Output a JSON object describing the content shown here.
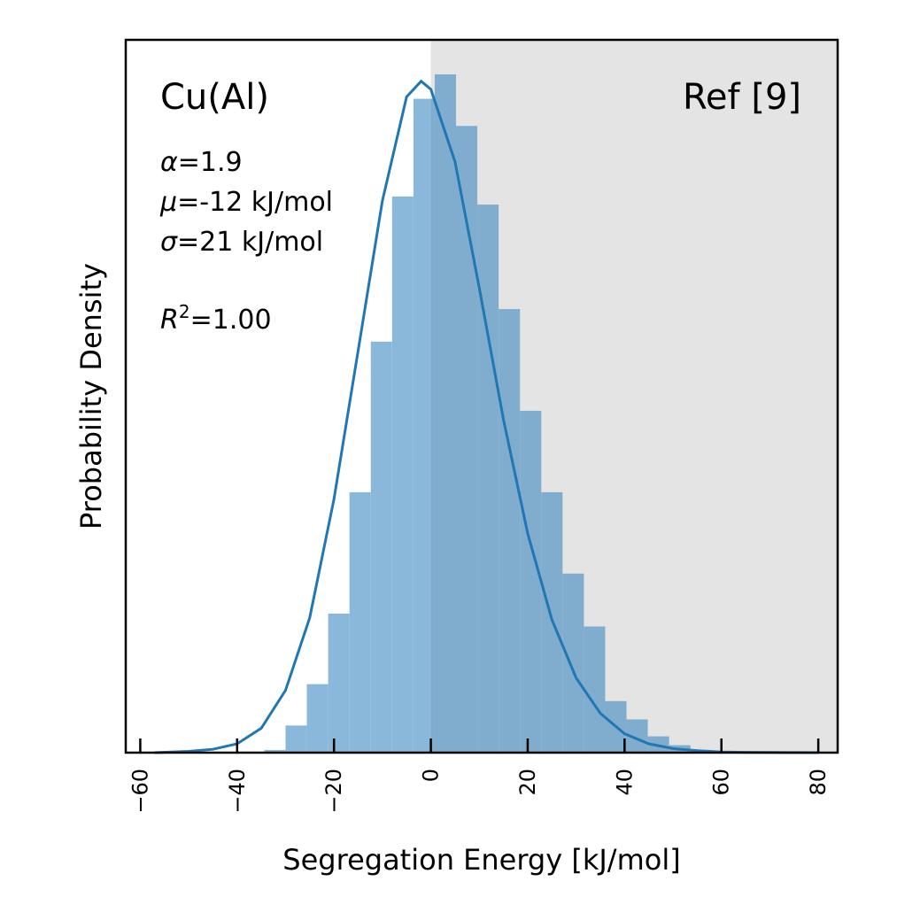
{
  "chart_data": {
    "type": "bar",
    "subtype": "histogram with fitted skew-normal curve",
    "xlabel": "Segregation Energy [kJ/mol]",
    "ylabel": "Probability Density",
    "xlim": [
      -63,
      84
    ],
    "ylim": [
      0,
      1.0
    ],
    "x_ticks": [
      -60,
      -40,
      -20,
      0,
      20,
      40,
      60,
      80
    ],
    "x_tick_labels": [
      "−60",
      "−40",
      "−20",
      "0",
      "20",
      "40",
      "60",
      "80"
    ],
    "y_tick_labels_shown": false,
    "shaded_region": {
      "from": 0,
      "to": 84,
      "color": "#e4e4e4"
    },
    "label_system": "Cu(Al)",
    "label_reference": "Ref [9]",
    "parameters": [
      {
        "symbol": "α",
        "text": "=1.9"
      },
      {
        "symbol": "μ",
        "text": "=-12 kJ/mol"
      },
      {
        "symbol": "σ",
        "text": "=21 kJ/mol"
      }
    ],
    "r_squared": {
      "symbol": "R",
      "sup": "2",
      "text": "=1.00"
    },
    "bar_color": "#8ab8da",
    "bar_color_in_shade": "#80acce",
    "curve_color": "#1f77b4",
    "bins": {
      "edges": [
        -34.4,
        -30.0,
        -25.6,
        -21.2,
        -16.8,
        -12.4,
        -8.0,
        -3.6,
        0.8,
        5.2,
        9.6,
        14.0,
        18.4,
        22.8,
        27.2,
        31.6,
        36.0,
        40.4,
        44.8,
        49.2,
        53.6,
        58.0
      ],
      "values": [
        0.004,
        0.04,
        0.101,
        0.205,
        0.384,
        0.606,
        0.82,
        0.964,
        1.0,
        0.924,
        0.808,
        0.654,
        0.504,
        0.384,
        0.264,
        0.186,
        0.076,
        0.049,
        0.024,
        0.011,
        0.004
      ]
    },
    "fit_curve": {
      "x": [
        -57,
        -50,
        -45,
        -40,
        -35,
        -30,
        -25,
        -20,
        -15,
        -10,
        -5,
        -2,
        0,
        5,
        10,
        15,
        20,
        25,
        30,
        35,
        40,
        45,
        50,
        55,
        60,
        65,
        70,
        75,
        80
      ],
      "y": [
        0.0,
        0.002,
        0.005,
        0.013,
        0.036,
        0.092,
        0.199,
        0.374,
        0.593,
        0.814,
        0.967,
        0.99,
        0.978,
        0.871,
        0.685,
        0.491,
        0.323,
        0.196,
        0.11,
        0.058,
        0.028,
        0.013,
        0.006,
        0.003,
        0.001,
        0.0005,
        0.0002,
        0.0001,
        0.0
      ]
    }
  }
}
